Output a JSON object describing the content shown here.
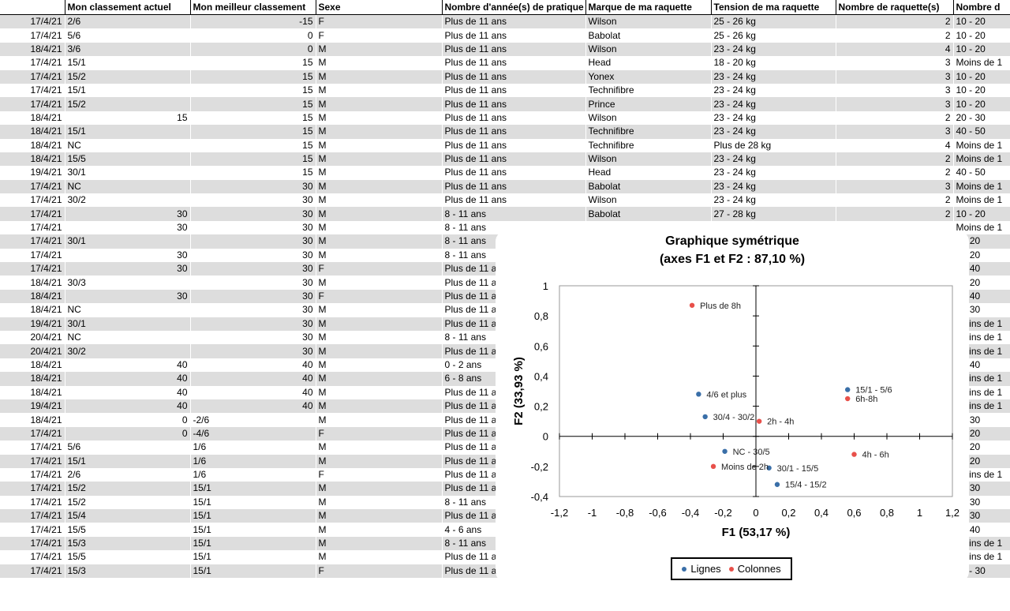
{
  "sheet": {
    "headers": [
      "",
      "Mon classement actuel",
      "Mon meilleur classement",
      "Sexe",
      "Nombre d'année(s) de pratique",
      "Marque de ma raquette",
      "Tension de ma raquette",
      "Nombre de raquette(s)",
      "Nombre d"
    ],
    "rows": [
      [
        "17/4/21",
        "2/6",
        "-15",
        "F",
        "Plus de 11 ans",
        "Wilson",
        "25 - 26 kg",
        "2",
        "10 - 20"
      ],
      [
        "17/4/21",
        "5/6",
        "0",
        "F",
        "Plus de 11 ans",
        "Babolat",
        "25 - 26 kg",
        "2",
        "10 - 20"
      ],
      [
        "18/4/21",
        "3/6",
        "0",
        "M",
        "Plus de 11 ans",
        "Wilson",
        "23 - 24 kg",
        "4",
        "10 - 20"
      ],
      [
        "17/4/21",
        "15/1",
        "15",
        "M",
        "Plus de 11 ans",
        "Head",
        "18 - 20 kg",
        "3",
        "Moins de 1"
      ],
      [
        "17/4/21",
        "15/2",
        "15",
        "M",
        "Plus de 11 ans",
        "Yonex",
        "23 - 24 kg",
        "3",
        "10 - 20"
      ],
      [
        "17/4/21",
        "15/1",
        "15",
        "M",
        "Plus de 11 ans",
        "Technifibre",
        "23 - 24 kg",
        "3",
        "10 - 20"
      ],
      [
        "17/4/21",
        "15/2",
        "15",
        "M",
        "Plus de 11 ans",
        "Prince",
        "23 - 24 kg",
        "3",
        "10 - 20"
      ],
      [
        "18/4/21",
        "15",
        "15",
        "M",
        "Plus de 11 ans",
        "Wilson",
        "23 - 24 kg",
        "2",
        "20 - 30"
      ],
      [
        "18/4/21",
        "15/1",
        "15",
        "M",
        "Plus de 11 ans",
        "Technifibre",
        "23 - 24 kg",
        "3",
        "40 - 50"
      ],
      [
        "18/4/21",
        "NC",
        "15",
        "M",
        "Plus de 11 ans",
        "Technifibre",
        "Plus de 28 kg",
        "4",
        "Moins de 1"
      ],
      [
        "18/4/21",
        "15/5",
        "15",
        "M",
        "Plus de 11 ans",
        "Wilson",
        "23 - 24 kg",
        "2",
        "Moins de 1"
      ],
      [
        "19/4/21",
        "30/1",
        "15",
        "M",
        "Plus de 11 ans",
        "Head",
        "23 - 24 kg",
        "2",
        "40 - 50"
      ],
      [
        "17/4/21",
        "NC",
        "30",
        "M",
        "Plus de 11 ans",
        "Babolat",
        "23 - 24 kg",
        "3",
        "Moins de 1"
      ],
      [
        "17/4/21",
        "30/2",
        "30",
        "M",
        "Plus de 11 ans",
        "Wilson",
        "23 - 24 kg",
        "2",
        "Moins de 1"
      ],
      [
        "17/4/21",
        "30",
        "30",
        "M",
        "8 - 11 ans",
        "Babolat",
        "27 - 28 kg",
        "2",
        "10 - 20"
      ],
      [
        "17/4/21",
        "30",
        "30",
        "M",
        "8 - 11 ans",
        "",
        "",
        "",
        "Moins de 1"
      ],
      [
        "17/4/21",
        "30/1",
        "30",
        "M",
        "8 - 11 ans",
        "",
        "",
        "",
        "0 - 20"
      ],
      [
        "17/4/21",
        "30",
        "30",
        "M",
        "8 - 11 ans",
        "",
        "",
        "",
        "0 - 20"
      ],
      [
        "17/4/21",
        "30",
        "30",
        "F",
        "Plus de 11 a",
        "",
        "",
        "",
        "0 - 40"
      ],
      [
        "18/4/21",
        "30/3",
        "30",
        "M",
        "Plus de 11 a",
        "",
        "",
        "",
        "0 - 20"
      ],
      [
        "18/4/21",
        "30",
        "30",
        "F",
        "Plus de 11 a",
        "",
        "",
        "",
        "0 - 40"
      ],
      [
        "18/4/21",
        "NC",
        "30",
        "M",
        "Plus de 11 a",
        "",
        "",
        "",
        "0 - 30"
      ],
      [
        "19/4/21",
        "30/1",
        "30",
        "M",
        "Plus de 11 a",
        "",
        "",
        "",
        "Moins de 1"
      ],
      [
        "20/4/21",
        "NC",
        "30",
        "M",
        "8 - 11 ans",
        "",
        "",
        "",
        "Moins de 1"
      ],
      [
        "20/4/21",
        "30/2",
        "30",
        "M",
        "Plus de 11 a",
        "",
        "",
        "",
        "Moins de 1"
      ],
      [
        "18/4/21",
        "40",
        "40",
        "M",
        "0 - 2  ans",
        "",
        "",
        "",
        "0 - 40"
      ],
      [
        "18/4/21",
        "40",
        "40",
        "M",
        "6 - 8 ans",
        "",
        "",
        "",
        "Moins de 1"
      ],
      [
        "18/4/21",
        "40",
        "40",
        "M",
        "Plus de 11 a",
        "",
        "",
        "",
        "Moins de 1"
      ],
      [
        "19/4/21",
        "40",
        "40",
        "M",
        "Plus de 11 a",
        "",
        "",
        "",
        "Moins de 1"
      ],
      [
        "18/4/21",
        "0",
        "-2/6",
        "M",
        "Plus de 11 a",
        "",
        "",
        "",
        "0 - 30"
      ],
      [
        "17/4/21",
        "0",
        "-4/6",
        "F",
        "Plus de 11 a",
        "",
        "",
        "",
        "0 - 20"
      ],
      [
        "17/4/21",
        "5/6",
        "1/6",
        "M",
        "Plus de 11 a",
        "",
        "",
        "",
        "0 - 20"
      ],
      [
        "17/4/21",
        "15/1",
        "1/6",
        "M",
        "Plus de 11 a",
        "",
        "",
        "",
        "0 - 20"
      ],
      [
        "17/4/21",
        "2/6",
        "1/6",
        "F",
        "Plus de 11 a",
        "",
        "",
        "",
        "Moins de 1"
      ],
      [
        "17/4/21",
        "15/2",
        "15/1",
        "M",
        "Plus de 11 a",
        "",
        "",
        "",
        "0 - 30"
      ],
      [
        "17/4/21",
        "15/2",
        "15/1",
        "M",
        "8 - 11 ans",
        "",
        "",
        "",
        "0 - 30"
      ],
      [
        "17/4/21",
        "15/4",
        "15/1",
        "M",
        "Plus de 11 a",
        "",
        "",
        "",
        "0 - 30"
      ],
      [
        "17/4/21",
        "15/5",
        "15/1",
        "M",
        "4 - 6 ans",
        "",
        "",
        "",
        "0 - 40"
      ],
      [
        "17/4/21",
        "15/3",
        "15/1",
        "M",
        "8 - 11 ans",
        "",
        "",
        "",
        "Moins de 1"
      ],
      [
        "17/4/21",
        "15/5",
        "15/1",
        "M",
        "Plus de 11 ans",
        "Babolat",
        "23 - 24 kg",
        "2",
        "Moins de 1"
      ],
      [
        "17/4/21",
        "15/3",
        "15/1",
        "F",
        "Plus de 11 ans",
        "Yonex",
        "23 - 24 kg",
        "2",
        "20 - 30"
      ]
    ]
  },
  "chart_data": {
    "type": "scatter",
    "title": "Graphique symétrique",
    "subtitle": "(axes F1 et F2 : 87,10 %)",
    "xlabel": "F1 (53,17 %)",
    "ylabel": "F2 (33,93 %)",
    "xlim": [
      -1.2,
      1.2
    ],
    "ylim": [
      -0.4,
      1
    ],
    "xticks": [
      "-1,2",
      "-1",
      "-0,8",
      "-0,6",
      "-0,4",
      "-0,2",
      "0",
      "0,2",
      "0,4",
      "0,6",
      "0,8",
      "1",
      "1,2"
    ],
    "yticks": [
      "-0,4",
      "-0,2",
      "0",
      "0,2",
      "0,4",
      "0,6",
      "0,8",
      "1"
    ],
    "grid": false,
    "legend": "bottom",
    "series": [
      {
        "name": "Lignes",
        "color": "#3a6fa8",
        "points": [
          {
            "label": "15/1 - 5/6",
            "x": 0.56,
            "y": 0.31
          },
          {
            "label": "4/6 et plus",
            "x": -0.35,
            "y": 0.28
          },
          {
            "label": "30/4 - 30/2",
            "x": -0.31,
            "y": 0.13
          },
          {
            "label": "NC - 30/5",
            "x": -0.19,
            "y": -0.1
          },
          {
            "label": "30/1 - 15/5",
            "x": 0.08,
            "y": -0.21
          },
          {
            "label": "15/4 - 15/2",
            "x": 0.13,
            "y": -0.32
          }
        ]
      },
      {
        "name": "Colonnes",
        "color": "#e8504a",
        "points": [
          {
            "label": "Plus de 8h",
            "x": -0.39,
            "y": 0.87
          },
          {
            "label": "6h-8h",
            "x": 0.56,
            "y": 0.25
          },
          {
            "label": "2h - 4h",
            "x": 0.02,
            "y": 0.1
          },
          {
            "label": "4h - 6h",
            "x": 0.6,
            "y": -0.12
          },
          {
            "label": "Moins de 2h",
            "x": -0.26,
            "y": -0.2
          }
        ]
      }
    ]
  }
}
